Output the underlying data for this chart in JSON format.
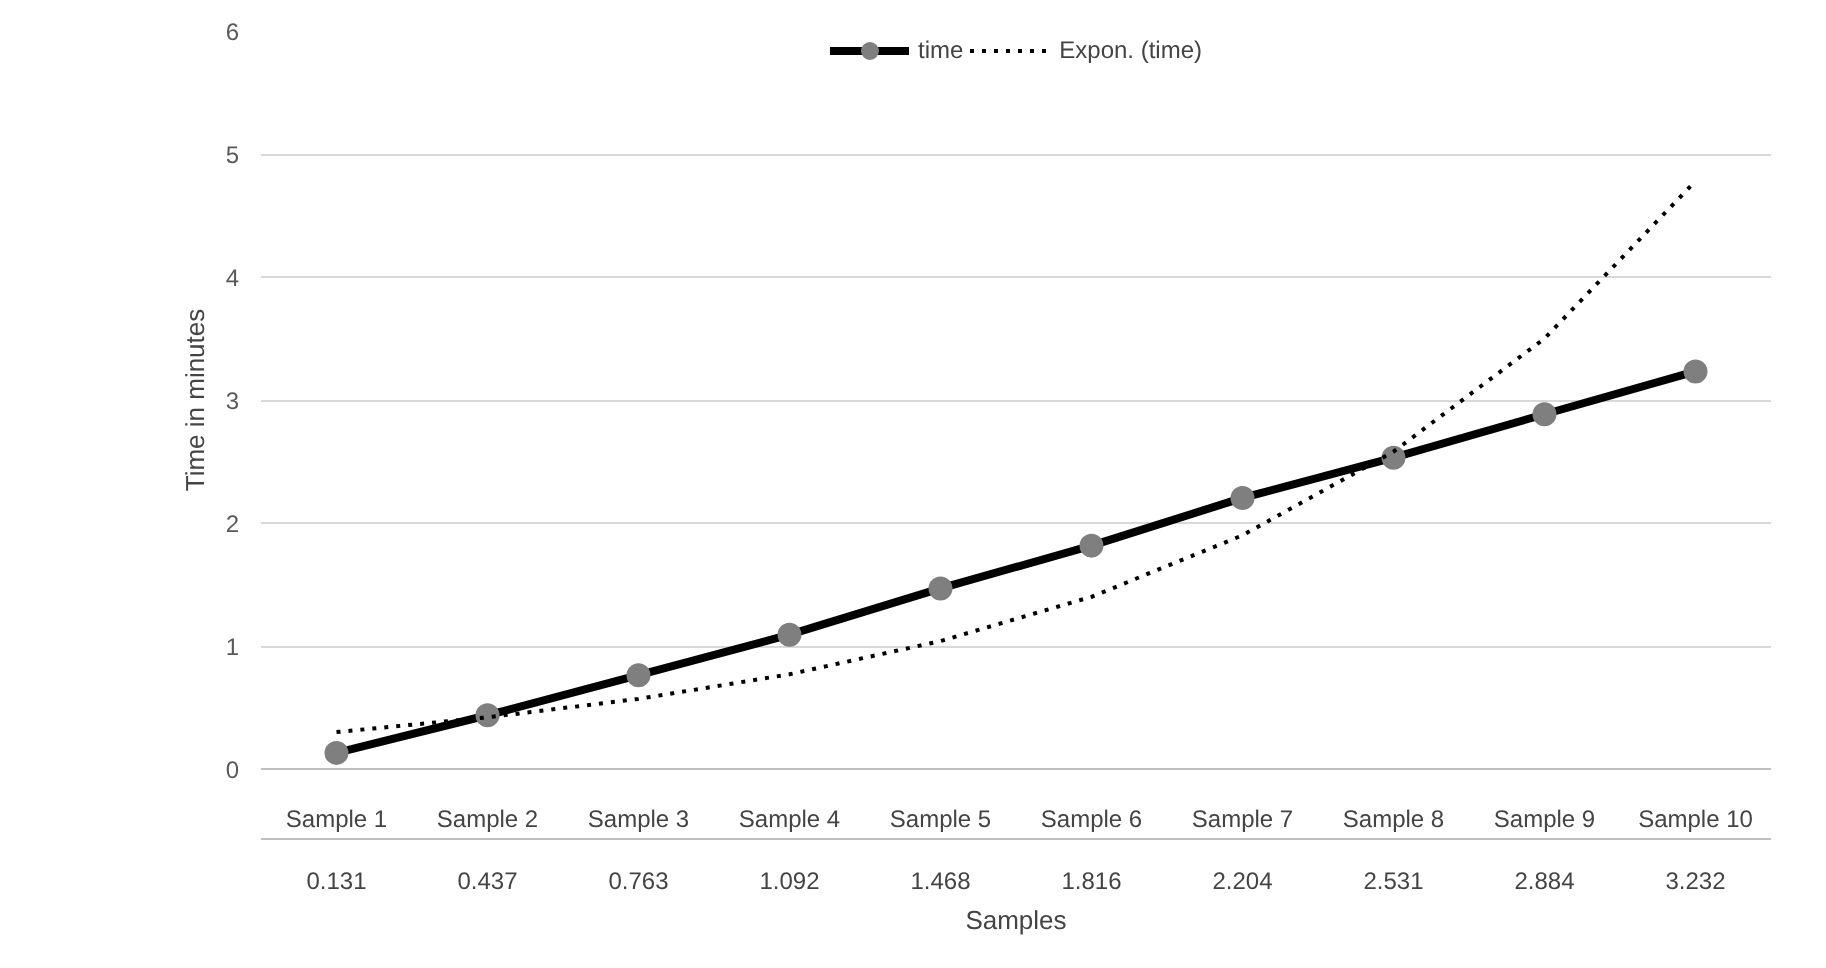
{
  "chart_data": {
    "type": "line",
    "xlabel": "Samples",
    "ylabel": "Time in minutes",
    "categories": [
      "Sample 1",
      "Sample 2",
      "Sample 3",
      "Sample 4",
      "Sample 5",
      "Sample 6",
      "Sample 7",
      "Sample 8",
      "Sample 9",
      "Sample 10"
    ],
    "ylim": [
      0,
      6
    ],
    "yticks": [
      0,
      1,
      2,
      3,
      4,
      5,
      6
    ],
    "grid": "y",
    "legend": "top",
    "series": [
      {
        "name": "time",
        "color": "#000000",
        "marker": "circle",
        "line_style": "solid",
        "values": [
          0.131,
          0.437,
          0.763,
          1.092,
          1.468,
          1.816,
          2.204,
          2.531,
          2.884,
          3.232
        ],
        "value_labels": [
          "0.131",
          "0.437",
          "0.763",
          "1.092",
          "1.468",
          "1.816",
          "2.204",
          "2.531",
          "2.884",
          "3.232"
        ]
      },
      {
        "name": "Expon. (time)",
        "color": "#000000",
        "marker": "none",
        "line_style": "dotted",
        "values": [
          0.3,
          0.42,
          0.57,
          0.77,
          1.04,
          1.4,
          1.9,
          2.58,
          3.5,
          4.78
        ]
      }
    ]
  }
}
